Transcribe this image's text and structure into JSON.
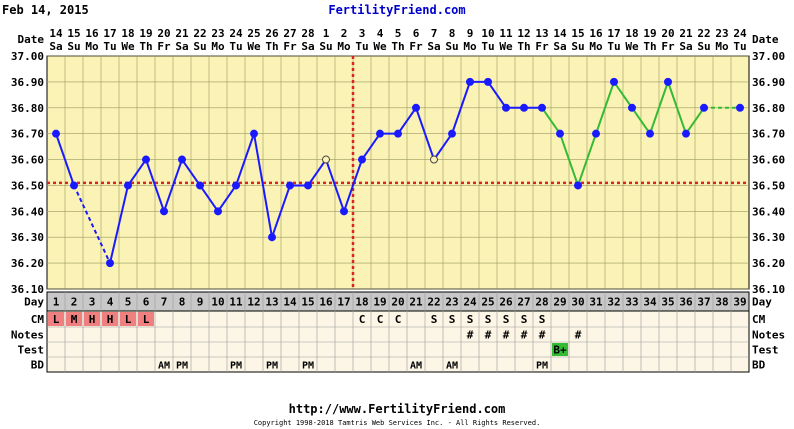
{
  "header": {
    "date": "Feb 14, 2015",
    "site": "FertilityFriend.com"
  },
  "footer": {
    "url": "http://www.FertilityFriend.com",
    "copyright": "Copyright 1998-2018 Tamtris Web Services Inc. - All Rights Reserved."
  },
  "colors": {
    "background": "#fbf3b6",
    "row_bg": "#fdf6e6",
    "grid": "#9a9a60",
    "temp_line": "#1a1aff",
    "projection_line": "#33bb33",
    "coverline": "#dd2222",
    "cm_fill": "#f08080",
    "test_fill": "#33bb33",
    "day_row_bg": "#c8c8c8"
  },
  "chart_data": {
    "type": "line",
    "title": "",
    "ylabel": "",
    "ylim": [
      36.1,
      37.0
    ],
    "yticks": [
      "36.10",
      "36.20",
      "36.30",
      "36.40",
      "36.50",
      "36.60",
      "36.70",
      "36.80",
      "36.90",
      "37.00"
    ],
    "dates": [
      "14",
      "15",
      "16",
      "17",
      "18",
      "19",
      "20",
      "21",
      "22",
      "23",
      "24",
      "25",
      "26",
      "27",
      "28",
      "1",
      "2",
      "3",
      "4",
      "5",
      "6",
      "7",
      "8",
      "9",
      "10",
      "11",
      "12",
      "13",
      "14",
      "15",
      "16",
      "17",
      "18",
      "19",
      "20",
      "21",
      "22",
      "23",
      "24"
    ],
    "weekdays": [
      "Sa",
      "Su",
      "Mo",
      "Tu",
      "We",
      "Th",
      "Fr",
      "Sa",
      "Su",
      "Mo",
      "Tu",
      "We",
      "Th",
      "Fr",
      "Sa",
      "Su",
      "Mo",
      "Tu",
      "We",
      "Th",
      "Fr",
      "Sa",
      "Su",
      "Mo",
      "Tu",
      "We",
      "Th",
      "Fr",
      "Sa",
      "Su",
      "Mo",
      "Tu",
      "We",
      "Th",
      "Fr",
      "Sa",
      "Su",
      "Mo",
      "Tu"
    ],
    "cycle_days": [
      "1",
      "2",
      "3",
      "4",
      "5",
      "6",
      "7",
      "8",
      "9",
      "10",
      "11",
      "12",
      "13",
      "14",
      "15",
      "16",
      "17",
      "18",
      "19",
      "20",
      "21",
      "22",
      "23",
      "24",
      "25",
      "26",
      "27",
      "28",
      "29",
      "30",
      "31",
      "32",
      "33",
      "34",
      "35",
      "36",
      "37",
      "38",
      "39"
    ],
    "temperatures": [
      36.7,
      36.5,
      null,
      36.2,
      36.5,
      36.6,
      36.4,
      36.6,
      36.5,
      36.4,
      36.5,
      36.7,
      36.3,
      36.5,
      36.5,
      36.6,
      36.4,
      36.6,
      36.7,
      36.7,
      36.8,
      36.6,
      36.7,
      36.9,
      36.9,
      36.8,
      36.8,
      36.8,
      36.7,
      36.5,
      36.7,
      36.9,
      36.8,
      36.7,
      36.9,
      36.7,
      36.8,
      null,
      36.8
    ],
    "open_points": [
      15,
      21
    ],
    "projection_start_day": 28,
    "coverline": 36.51,
    "ovulation_day": 17,
    "row_labels": {
      "day": "Day",
      "cm": "CM",
      "notes": "Notes",
      "test": "Test",
      "bd": "BD"
    },
    "cm": [
      "L",
      "M",
      "H",
      "H",
      "L",
      "L",
      "",
      "",
      "",
      "",
      "",
      "",
      "",
      "",
      "",
      "",
      "",
      "C",
      "C",
      "C",
      "",
      "S",
      "S",
      "S",
      "S",
      "S",
      "S",
      "S",
      "",
      "",
      "",
      "",
      "",
      "",
      "",
      "",
      "",
      "",
      ""
    ],
    "notes": [
      "",
      "",
      "",
      "",
      "",
      "",
      "",
      "",
      "",
      "",
      "",
      "",
      "",
      "",
      "",
      "",
      "",
      "",
      "",
      "",
      "",
      "",
      "",
      "#",
      "#",
      "#",
      "#",
      "#",
      "",
      "#",
      "",
      "",
      "",
      "",
      "",
      "",
      "",
      "",
      ""
    ],
    "test": [
      "",
      "",
      "",
      "",
      "",
      "",
      "",
      "",
      "",
      "",
      "",
      "",
      "",
      "",
      "",
      "",
      "",
      "",
      "",
      "",
      "",
      "",
      "",
      "",
      "",
      "",
      "",
      "",
      "B+",
      "",
      "",
      "",
      "",
      "",
      "",
      "",
      "",
      "",
      ""
    ],
    "bd": [
      "",
      "",
      "",
      "",
      "",
      "",
      "AM",
      "PM",
      "",
      "",
      "PM",
      "",
      "PM",
      "",
      "PM",
      "",
      "",
      "",
      "",
      "",
      "AM",
      "",
      "AM",
      "",
      "",
      "",
      "",
      "PM",
      "",
      "",
      "",
      "",
      "",
      "",
      "",
      "",
      "",
      "",
      ""
    ]
  }
}
